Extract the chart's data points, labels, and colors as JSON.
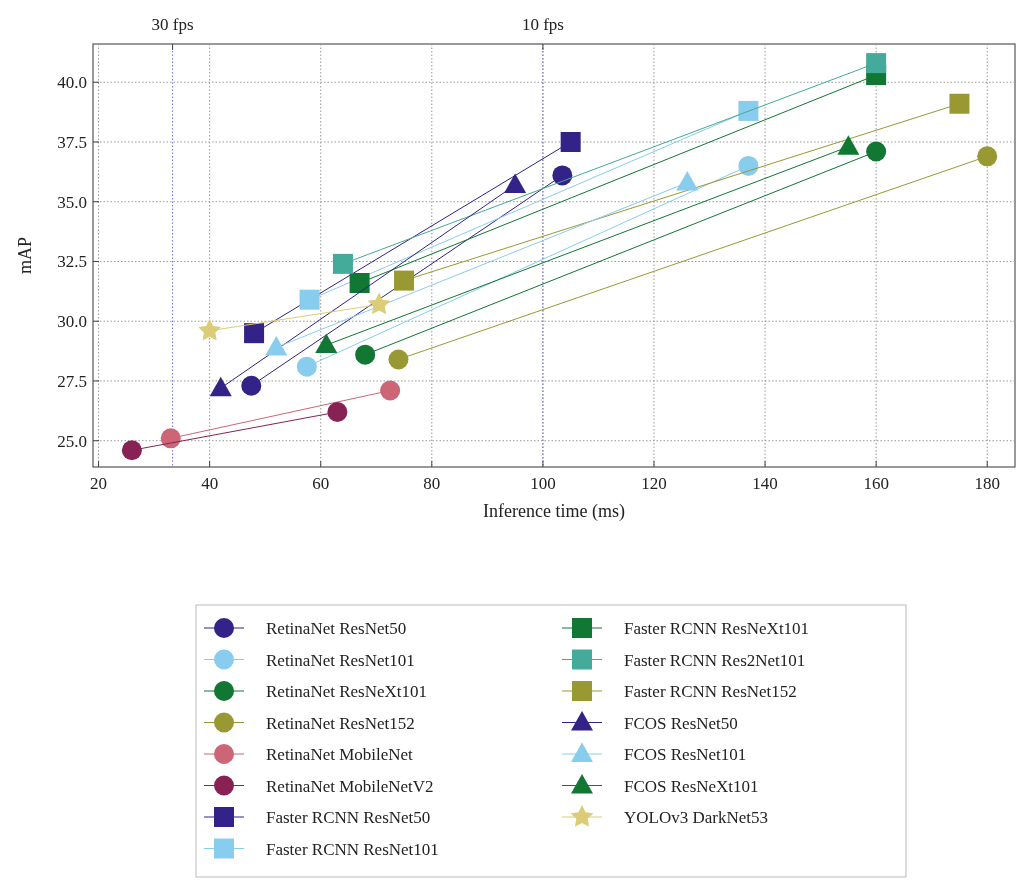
{
  "chart_data": {
    "type": "line",
    "xlabel": "Inference time (ms)",
    "ylabel": "mAP",
    "xlim": [
      19,
      185
    ],
    "xticks": [
      20,
      40,
      60,
      80,
      100,
      120,
      140,
      160,
      180
    ],
    "ylim": [
      23.9,
      41.6
    ],
    "yticks": [
      {
        "value": 25,
        "label": "25.0"
      },
      {
        "value": 27.5,
        "label": "27.5"
      },
      {
        "value": 30,
        "label": "30.0"
      },
      {
        "value": 32.5,
        "label": "32.5"
      },
      {
        "value": 35,
        "label": "35.0"
      },
      {
        "value": 37.5,
        "label": "37.5"
      },
      {
        "value": 40,
        "label": "40.0"
      }
    ],
    "ref_lines": [
      {
        "axis": "x",
        "value": 33.33,
        "label": "30 fps",
        "color": "#6f6fe0",
        "line_style": "dotted"
      },
      {
        "axis": "x",
        "value": 100,
        "label": "10 fps",
        "color": "#6f6fe0",
        "line_style": "dotted"
      }
    ],
    "grid": true,
    "legend": "bottom",
    "series": [
      {
        "name": "RetinaNet ResNet50",
        "color": "#332288",
        "marker": "circle",
        "x": [
          47.5,
          103.5
        ],
        "values": [
          27.3,
          36.1
        ]
      },
      {
        "name": "RetinaNet ResNet101",
        "color": "#88ccee",
        "marker": "circle",
        "x": [
          57.5,
          137
        ],
        "values": [
          28.1,
          36.5
        ]
      },
      {
        "name": "RetinaNet ResNeXt101",
        "color": "#117733",
        "marker": "circle",
        "x": [
          68,
          160
        ],
        "values": [
          28.6,
          37.1
        ]
      },
      {
        "name": "RetinaNet ResNet152",
        "color": "#999933",
        "marker": "circle",
        "x": [
          74,
          180
        ],
        "values": [
          28.4,
          36.9
        ]
      },
      {
        "name": "RetinaNet MobileNet",
        "color": "#cc6677",
        "marker": "circle",
        "x": [
          33,
          72.5
        ],
        "values": [
          25.1,
          27.1
        ]
      },
      {
        "name": "RetinaNet MobileNetV2",
        "color": "#882255",
        "marker": "circle",
        "x": [
          26,
          63
        ],
        "values": [
          24.6,
          26.2
        ]
      },
      {
        "name": "Faster RCNN ResNet50",
        "color": "#332288",
        "marker": "square",
        "x": [
          48,
          105
        ],
        "values": [
          29.5,
          37.5
        ]
      },
      {
        "name": "Faster RCNN ResNet101",
        "color": "#88ccee",
        "marker": "square",
        "x": [
          58,
          137
        ],
        "values": [
          30.9,
          38.8
        ]
      },
      {
        "name": "Faster RCNN ResNeXt101",
        "color": "#117733",
        "marker": "square",
        "x": [
          67,
          160
        ],
        "values": [
          31.6,
          40.3
        ]
      },
      {
        "name": "Faster RCNN Res2Net101",
        "color": "#44aa99",
        "marker": "square",
        "x": [
          64,
          160
        ],
        "values": [
          32.4,
          40.8
        ]
      },
      {
        "name": "Faster RCNN ResNet152",
        "color": "#999933",
        "marker": "square",
        "x": [
          75,
          175
        ],
        "values": [
          31.7,
          39.1
        ]
      },
      {
        "name": "FCOS ResNet50",
        "color": "#332288",
        "marker": "triangle",
        "x": [
          42,
          95
        ],
        "values": [
          27.2,
          35.7
        ]
      },
      {
        "name": "FCOS ResNet101",
        "color": "#88ccee",
        "marker": "triangle",
        "x": [
          52,
          126
        ],
        "values": [
          28.9,
          35.8
        ]
      },
      {
        "name": "FCOS ResNeXt101",
        "color": "#117733",
        "marker": "triangle",
        "x": [
          61,
          155
        ],
        "values": [
          29.0,
          37.3
        ]
      },
      {
        "name": "YOLOv3 DarkNet53",
        "color": "#ddcc77",
        "marker": "star",
        "x": [
          40,
          70.5
        ],
        "values": [
          29.6,
          30.7
        ]
      }
    ]
  }
}
